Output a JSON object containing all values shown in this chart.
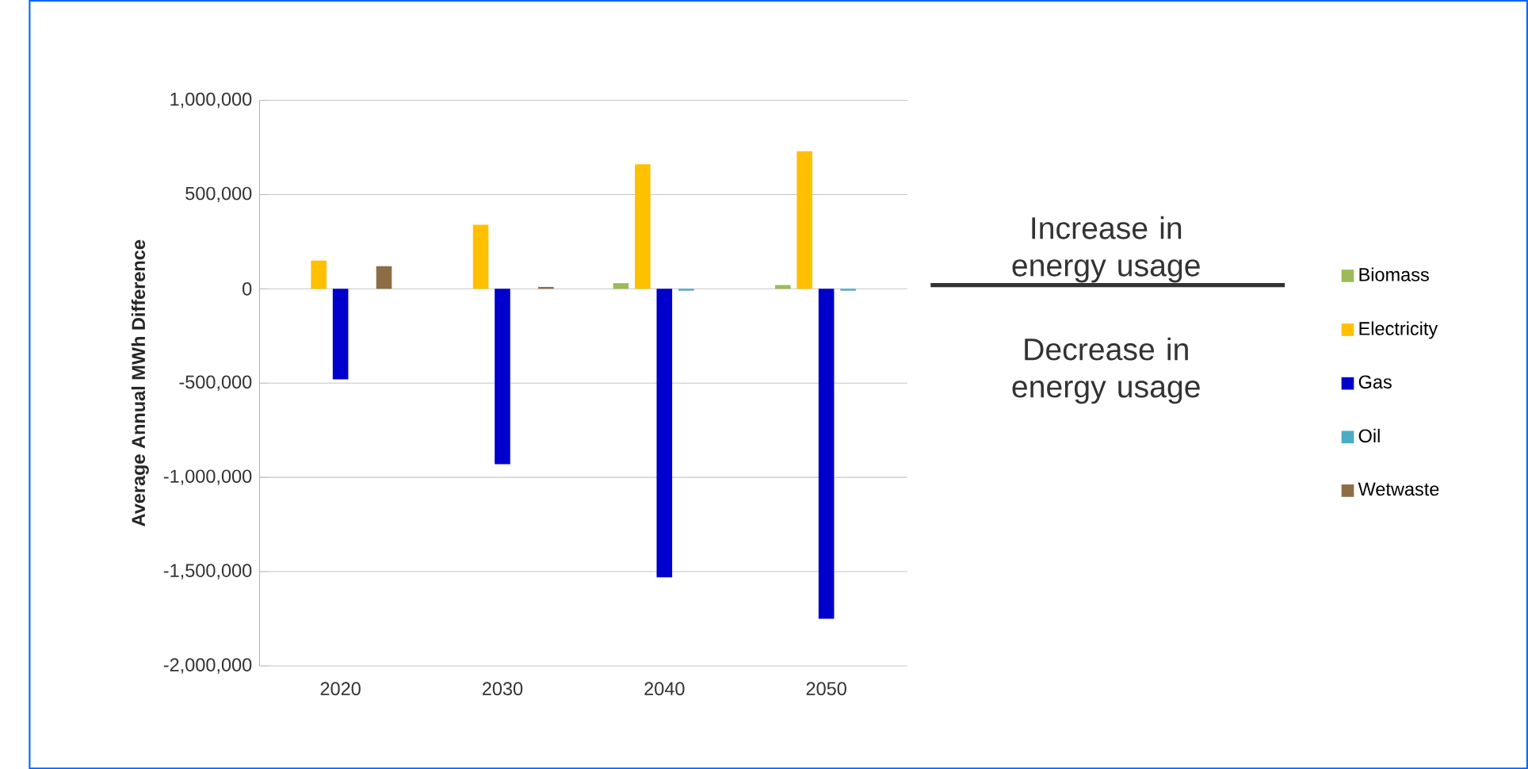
{
  "chart_data": {
    "type": "bar",
    "ylabel": "Average Annual MWh Difference",
    "categories": [
      "2020",
      "2030",
      "2040",
      "2050"
    ],
    "series": [
      {
        "name": "Biomass",
        "color": "#9bbb59",
        "values": [
          0,
          0,
          30000,
          20000
        ]
      },
      {
        "name": "Electricity",
        "color": "#ffc000",
        "values": [
          150000,
          340000,
          660000,
          730000
        ]
      },
      {
        "name": "Gas",
        "color": "#0000cc",
        "values": [
          -480000,
          -930000,
          -1530000,
          -1750000
        ]
      },
      {
        "name": "Oil",
        "color": "#4bacc6",
        "values": [
          0,
          0,
          -10000,
          -10000
        ]
      },
      {
        "name": "Wetwaste",
        "color": "#8c6d46",
        "values": [
          120000,
          10000,
          0,
          0
        ]
      }
    ],
    "ylim": [
      -2000000,
      1000000
    ],
    "yticks": [
      {
        "value": -2000000,
        "label": "-2,000,000"
      },
      {
        "value": -1500000,
        "label": "-1,500,000"
      },
      {
        "value": -1000000,
        "label": "-1,000,000"
      },
      {
        "value": -500000,
        "label": "-500,000"
      },
      {
        "value": 0,
        "label": "0"
      },
      {
        "value": 500000,
        "label": "500,000"
      },
      {
        "value": 1000000,
        "label": "1,000,000"
      }
    ],
    "grid": "y",
    "legend": "right",
    "annotations": [
      "Increase in energy usage",
      "Decrease in energy usage"
    ]
  }
}
